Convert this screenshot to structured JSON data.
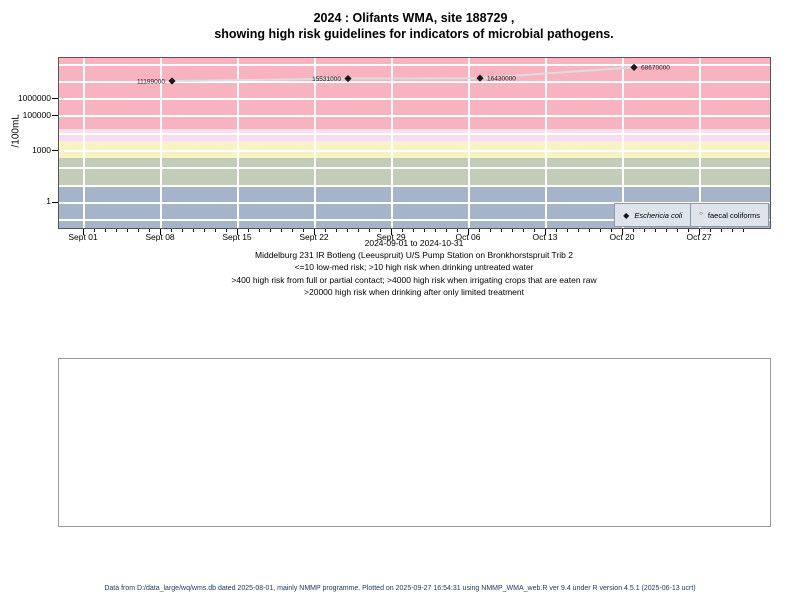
{
  "title": {
    "line1": "2024 : Olifants WMA, site 188729 ,",
    "line2": "showing high risk guidelines for indicators of microbial pathogens."
  },
  "chart_data": {
    "type": "scatter",
    "title": "2024 : Olifants WMA, site 188729 , showing high risk guidelines for indicators of microbial pathogens.",
    "ylabel": "/100mL",
    "y_axis": {
      "scale": "log10",
      "tick_labels": [
        "1000000",
        "100000",
        "1000",
        "1"
      ],
      "tick_values": [
        1000000,
        100000,
        1000,
        1
      ],
      "ylim_log10": [
        -1.45,
        8.38
      ],
      "grid": "on"
    },
    "x_axis": {
      "range_label": "2024-09-01 to 2024-10-31",
      "tick_labels": [
        "Sept 01",
        "Sept 08",
        "Sept 15",
        "Sept 22",
        "Sept 29",
        "Oct 06",
        "Oct 13",
        "Oct 20",
        "Oct 27"
      ],
      "major_tick_days": [
        0,
        7,
        14,
        21,
        28,
        35,
        42,
        49,
        56
      ],
      "minor_tick_every_days": 1,
      "total_days": 60
    },
    "series": [
      {
        "name": "Eschericia coli",
        "marker": "filled-diamond",
        "marker_color": "#1a1a1a",
        "line_color": "#DCDCDC",
        "points": [
          {
            "date": "2024-09-09",
            "day": 8,
            "value": 11199000,
            "label": "11199000",
            "label_side": "left"
          },
          {
            "date": "2024-09-25",
            "day": 24,
            "value": 15531000,
            "label": "15531000",
            "label_side": "left"
          },
          {
            "date": "2024-10-07",
            "day": 36,
            "value": 16430000,
            "label": "16430000",
            "label_side": "right"
          },
          {
            "date": "2024-10-21",
            "day": 50,
            "value": 68670000,
            "label": "68670000",
            "label_side": "right"
          }
        ]
      },
      {
        "name": "faecal coliforms",
        "marker": "open-circle",
        "points": []
      }
    ],
    "legend": [
      "Eschericia coli",
      "faecal coliforms"
    ],
    "legend_position": "bottom-right",
    "risk_bands": [
      {
        "range": ">20000",
        "from": 20000,
        "to": 240000000,
        "color": "#F8B3C0"
      },
      {
        "range": "10000-20000",
        "from": 10000,
        "to": 20000,
        "color": "#FBE0EA"
      },
      {
        "range": "4000-10000",
        "from": 4000,
        "to": 10000,
        "color": "#F8DCF4"
      },
      {
        "range": "400-4000",
        "from": 400,
        "to": 4000,
        "color": "#F7F3C3"
      },
      {
        "range": "10-400",
        "from": 10,
        "to": 400,
        "color": "#C3CCB6"
      },
      {
        "range": "<=10",
        "from": 0.035,
        "to": 10,
        "color": "#A4B4C9"
      }
    ]
  },
  "captions": {
    "date_range": "2024-09-01 to 2024-10-31",
    "station": "Middelburg 231 IR Botleng (Leeuspruit) U/S Pump Station on Bronkhorstspruit Trib 2",
    "guideline1": "<=10 low-med risk; >10 high risk when drinking untreated water",
    "guideline2": ">400 high risk from full or partial contact; >4000 high risk when irrigating crops that are eaten raw",
    "guideline3": ">20000 high risk when drinking after only limited treatment"
  },
  "footer": "Data from D:/data_large/wq/wms.db dated 2025-08-01, mainly NMMP programme. Plotted on 2025-09-27 16:54:31 using NMMP_WMA_web.R ver 9.4 under R version 4.5.1 (2025-06-13 ucrt)"
}
